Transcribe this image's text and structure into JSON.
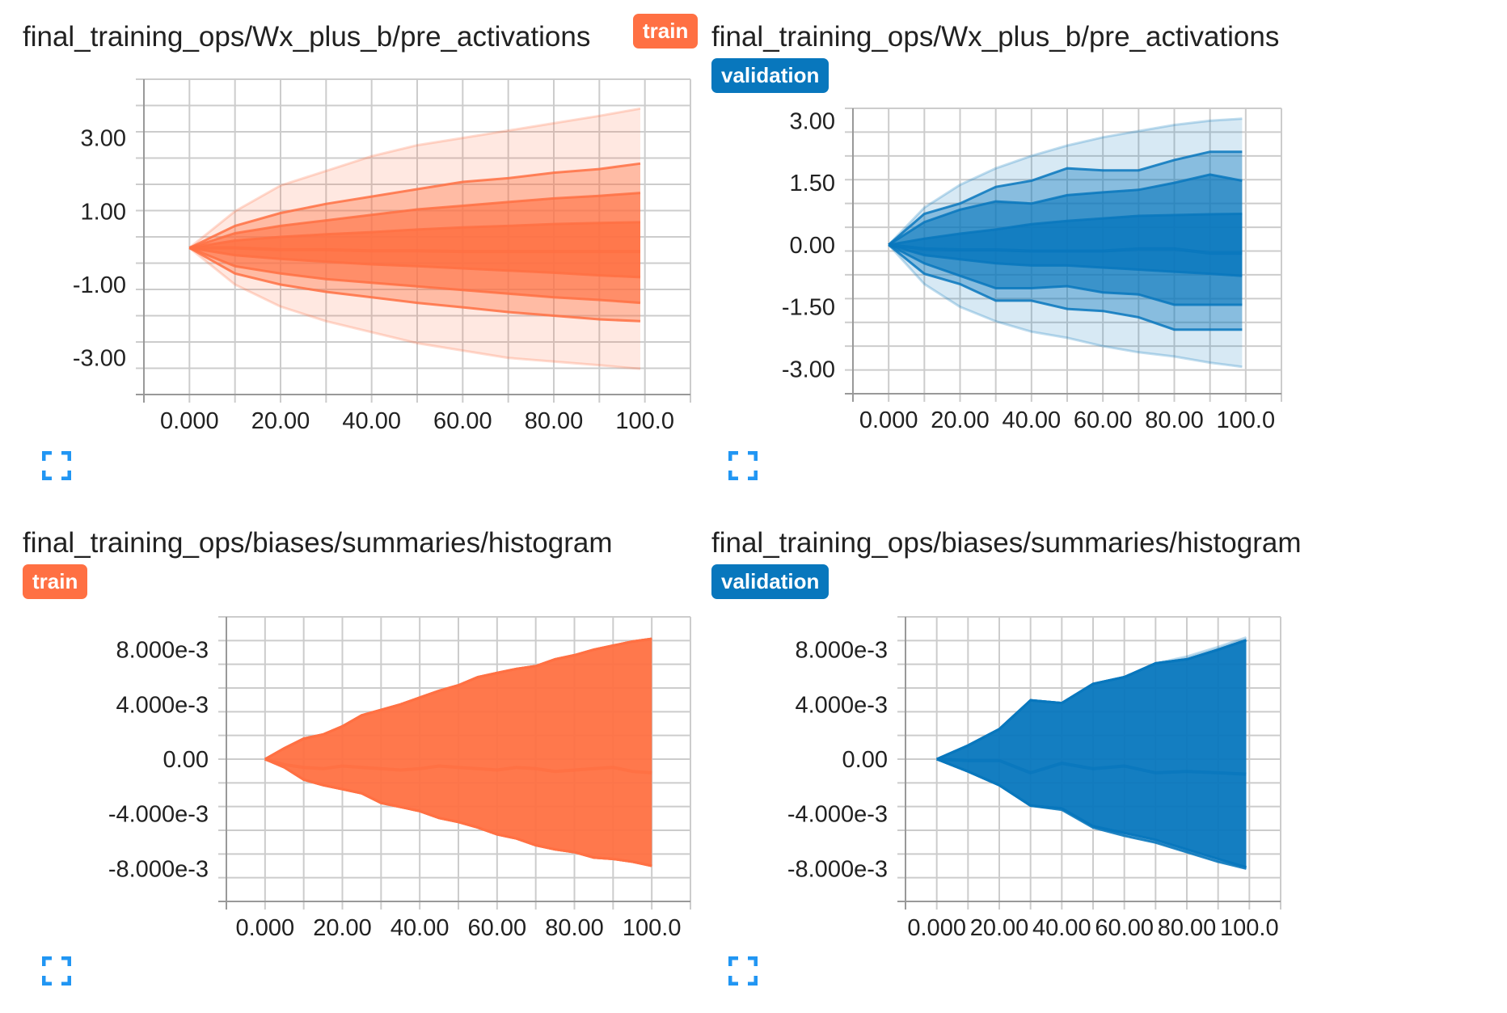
{
  "colors": {
    "train": "#ff7043",
    "validation": "#0877bd"
  },
  "charts": [
    {
      "title": "final_training_ops/Wx_plus_b/pre_activations",
      "tag": "train",
      "expand_icon": "fullscreen-icon",
      "chart_data": {
        "type": "area",
        "subtype": "histogram-distribution",
        "color": "#ff7043",
        "xlim": [
          -10,
          110
        ],
        "ylim": [
          -4.0,
          4.6
        ],
        "xticks": [
          0,
          20,
          40,
          60,
          80,
          100
        ],
        "xtick_labels": [
          "0.000",
          "20.00",
          "40.00",
          "60.00",
          "80.00",
          "100.0"
        ],
        "yticks": [
          3.0,
          1.0,
          -1.0,
          -3.0
        ],
        "ytick_labels": [
          "3.00",
          "1.00",
          "-1.00",
          "-3.00"
        ],
        "grid": true,
        "x": [
          0,
          10,
          20,
          30,
          40,
          50,
          60,
          70,
          80,
          90,
          99
        ],
        "bands": [
          [
            0,
            1.0,
            1.7,
            2.1,
            2.5,
            2.8,
            3.0,
            3.2,
            3.4,
            3.6,
            3.8
          ],
          [
            0,
            0.6,
            0.95,
            1.2,
            1.4,
            1.6,
            1.8,
            1.9,
            2.05,
            2.15,
            2.3
          ],
          [
            0,
            0.4,
            0.6,
            0.75,
            0.9,
            1.05,
            1.15,
            1.25,
            1.35,
            1.42,
            1.5
          ],
          [
            0,
            0.2,
            0.3,
            0.37,
            0.43,
            0.5,
            0.56,
            0.6,
            0.65,
            0.68,
            0.7
          ],
          [
            0,
            0.0,
            -0.05,
            -0.05,
            -0.08,
            -0.08,
            -0.1,
            -0.1,
            -0.1,
            -0.1,
            -0.1
          ],
          [
            0,
            -0.2,
            -0.3,
            -0.38,
            -0.45,
            -0.5,
            -0.56,
            -0.62,
            -0.68,
            -0.75,
            -0.8
          ],
          [
            0,
            -0.5,
            -0.7,
            -0.85,
            -0.95,
            -1.05,
            -1.15,
            -1.25,
            -1.35,
            -1.42,
            -1.5
          ],
          [
            0,
            -0.7,
            -1.0,
            -1.2,
            -1.35,
            -1.5,
            -1.62,
            -1.75,
            -1.85,
            -1.95,
            -2.0
          ],
          [
            0,
            -1.0,
            -1.6,
            -2.0,
            -2.3,
            -2.6,
            -2.8,
            -3.0,
            -3.1,
            -3.2,
            -3.3
          ]
        ]
      }
    },
    {
      "title": "final_training_ops/Wx_plus_b/pre_activations",
      "tag": "validation",
      "expand_icon": "fullscreen-icon",
      "chart_data": {
        "type": "area",
        "subtype": "histogram-distribution",
        "color": "#0877bd",
        "xlim": [
          -10,
          110
        ],
        "ylim": [
          -3.6,
          3.3
        ],
        "xticks": [
          0,
          20,
          40,
          60,
          80,
          100
        ],
        "xtick_labels": [
          "0.000",
          "20.00",
          "40.00",
          "60.00",
          "80.00",
          "100.0"
        ],
        "yticks": [
          3.0,
          1.5,
          0.0,
          -1.5,
          -3.0
        ],
        "ytick_labels": [
          "3.00",
          "1.50",
          "0.00",
          "-1.50",
          "-3.00"
        ],
        "grid": true,
        "x": [
          0,
          10,
          20,
          30,
          40,
          50,
          60,
          70,
          80,
          90,
          99
        ],
        "bands": [
          [
            0,
            0.9,
            1.45,
            1.85,
            2.15,
            2.4,
            2.6,
            2.75,
            2.9,
            3.0,
            3.05
          ],
          [
            0,
            0.75,
            1.0,
            1.4,
            1.55,
            1.85,
            1.8,
            1.8,
            2.05,
            2.25,
            2.25
          ],
          [
            0,
            0.55,
            0.85,
            1.05,
            1.0,
            1.2,
            1.27,
            1.33,
            1.5,
            1.7,
            1.55
          ],
          [
            0,
            0.15,
            0.27,
            0.37,
            0.5,
            0.58,
            0.64,
            0.7,
            0.72,
            0.74,
            0.75
          ],
          [
            0,
            -0.1,
            -0.12,
            -0.12,
            -0.15,
            -0.15,
            -0.15,
            -0.1,
            -0.1,
            -0.2,
            -0.2
          ],
          [
            0,
            -0.25,
            -0.35,
            -0.45,
            -0.5,
            -0.5,
            -0.55,
            -0.6,
            -0.65,
            -0.7,
            -0.75
          ],
          [
            0,
            -0.45,
            -0.75,
            -1.05,
            -1.05,
            -1.0,
            -1.15,
            -1.2,
            -1.45,
            -1.45,
            -1.45
          ],
          [
            0,
            -0.7,
            -0.95,
            -1.35,
            -1.35,
            -1.55,
            -1.6,
            -1.75,
            -2.05,
            -2.05,
            -2.05
          ],
          [
            0,
            -0.95,
            -1.5,
            -1.85,
            -2.1,
            -2.25,
            -2.45,
            -2.6,
            -2.7,
            -2.85,
            -2.95
          ]
        ]
      }
    },
    {
      "title": "final_training_ops/biases/summaries/histogram",
      "tag": "train",
      "expand_icon": "fullscreen-icon",
      "chart_data": {
        "type": "area",
        "subtype": "histogram-distribution",
        "color": "#ff7043",
        "xlim": [
          -10,
          110
        ],
        "ylim": [
          -0.0104,
          0.0104
        ],
        "xticks": [
          0,
          20,
          40,
          60,
          80,
          100
        ],
        "xtick_labels": [
          "0.000",
          "20.00",
          "40.00",
          "60.00",
          "80.00",
          "100.0"
        ],
        "yticks": [
          0.008,
          0.004,
          0.0,
          -0.004,
          -0.008
        ],
        "ytick_labels": [
          "8.000e-3",
          "4.000e-3",
          "0.00",
          "-4.000e-3",
          "-8.000e-3"
        ],
        "grid": true,
        "x": [
          0,
          5,
          10,
          15,
          20,
          25,
          30,
          35,
          40,
          45,
          50,
          55,
          60,
          65,
          70,
          75,
          80,
          85,
          90,
          95,
          100
        ],
        "bands": [
          [
            0,
            0.0008,
            0.0015,
            0.0018,
            0.0024,
            0.0032,
            0.0036,
            0.004,
            0.0045,
            0.005,
            0.0054,
            0.006,
            0.0063,
            0.0066,
            0.0068,
            0.0073,
            0.0076,
            0.008,
            0.0083,
            0.0086,
            0.0088
          ],
          [
            0,
            0.0008,
            0.0015,
            0.0018,
            0.0024,
            0.0032,
            0.0036,
            0.004,
            0.0045,
            0.005,
            0.0054,
            0.006,
            0.0063,
            0.0066,
            0.0068,
            0.0073,
            0.0076,
            0.008,
            0.0083,
            0.0086,
            0.0088
          ],
          [
            0,
            0.0008,
            0.0015,
            0.0018,
            0.0024,
            0.0032,
            0.0036,
            0.004,
            0.0045,
            0.005,
            0.0054,
            0.006,
            0.0063,
            0.0066,
            0.0068,
            0.0073,
            0.0076,
            0.008,
            0.0083,
            0.0086,
            0.0088
          ],
          [
            0,
            0.0008,
            0.0015,
            0.0018,
            0.0024,
            0.0032,
            0.0036,
            0.004,
            0.0045,
            0.005,
            0.0054,
            0.006,
            0.0063,
            0.0066,
            0.0068,
            0.0073,
            0.0076,
            0.008,
            0.0083,
            0.0086,
            0.0088
          ],
          [
            0,
            -0.0004,
            -0.0006,
            -0.0007,
            -0.0005,
            -0.0006,
            -0.0007,
            -0.0008,
            -0.0007,
            -0.0005,
            -0.0006,
            -0.0007,
            -0.0008,
            -0.0006,
            -0.0007,
            -0.0009,
            -0.0008,
            -0.0007,
            -0.0006,
            -0.0009,
            -0.001
          ],
          [
            0,
            -0.0006,
            -0.0015,
            -0.0019,
            -0.0022,
            -0.0025,
            -0.0032,
            -0.0035,
            -0.0038,
            -0.0043,
            -0.0046,
            -0.005,
            -0.0055,
            -0.0058,
            -0.0063,
            -0.0066,
            -0.0068,
            -0.0072,
            -0.0073,
            -0.0075,
            -0.0078
          ],
          [
            0,
            -0.0006,
            -0.0015,
            -0.0019,
            -0.0022,
            -0.0025,
            -0.0032,
            -0.0035,
            -0.0038,
            -0.0043,
            -0.0046,
            -0.005,
            -0.0055,
            -0.0058,
            -0.0063,
            -0.0066,
            -0.0068,
            -0.0072,
            -0.0073,
            -0.0075,
            -0.0078
          ],
          [
            0,
            -0.0006,
            -0.0015,
            -0.0019,
            -0.0022,
            -0.0025,
            -0.0032,
            -0.0035,
            -0.0038,
            -0.0043,
            -0.0046,
            -0.005,
            -0.0055,
            -0.0058,
            -0.0063,
            -0.0066,
            -0.0068,
            -0.0072,
            -0.0073,
            -0.0075,
            -0.0078
          ],
          [
            0,
            -0.0006,
            -0.0015,
            -0.0019,
            -0.0022,
            -0.0025,
            -0.0032,
            -0.0035,
            -0.0038,
            -0.0043,
            -0.0046,
            -0.005,
            -0.0055,
            -0.0058,
            -0.0063,
            -0.0066,
            -0.0068,
            -0.0072,
            -0.0073,
            -0.0075,
            -0.0078
          ]
        ]
      }
    },
    {
      "title": "final_training_ops/biases/summaries/histogram",
      "tag": "validation",
      "expand_icon": "fullscreen-icon",
      "chart_data": {
        "type": "area",
        "subtype": "histogram-distribution",
        "color": "#0877bd",
        "xlim": [
          -10,
          110
        ],
        "ylim": [
          -0.0104,
          0.0104
        ],
        "xticks": [
          0,
          20,
          40,
          60,
          80,
          100
        ],
        "xtick_labels": [
          "0.000",
          "20.00",
          "40.00",
          "60.00",
          "80.00",
          "100.0"
        ],
        "yticks": [
          0.008,
          0.004,
          0.0,
          -0.004,
          -0.008
        ],
        "ytick_labels": [
          "8.000e-3",
          "4.000e-3",
          "0.00",
          "-4.000e-3",
          "-8.000e-3"
        ],
        "grid": true,
        "x": [
          0,
          10,
          20,
          30,
          40,
          50,
          60,
          70,
          80,
          90,
          99
        ],
        "bands": [
          [
            0,
            0.001,
            0.0022,
            0.0043,
            0.0041,
            0.0055,
            0.006,
            0.007,
            0.0075,
            0.0082,
            0.0089
          ],
          [
            0,
            0.001,
            0.0022,
            0.0043,
            0.0041,
            0.0055,
            0.006,
            0.007,
            0.0073,
            0.008,
            0.0087
          ],
          [
            0,
            0.001,
            0.0022,
            0.0043,
            0.0041,
            0.0055,
            0.006,
            0.007,
            0.0073,
            0.008,
            0.0087
          ],
          [
            0,
            0.001,
            0.0022,
            0.0043,
            0.0041,
            0.0055,
            0.006,
            0.007,
            0.0073,
            0.008,
            0.0087
          ],
          [
            0,
            -0.0001,
            -0.0001,
            -0.001,
            -0.0003,
            -0.0007,
            -0.0005,
            -0.001,
            -0.0009,
            -0.001,
            -0.0011
          ],
          [
            0,
            -0.0009,
            -0.0019,
            -0.0034,
            -0.0036,
            -0.0049,
            -0.0054,
            -0.0059,
            -0.0066,
            -0.0073,
            -0.0079
          ],
          [
            0,
            -0.0009,
            -0.0019,
            -0.0034,
            -0.0036,
            -0.0049,
            -0.0054,
            -0.0059,
            -0.0066,
            -0.0073,
            -0.0079
          ],
          [
            0,
            -0.0009,
            -0.0019,
            -0.0034,
            -0.0037,
            -0.005,
            -0.0056,
            -0.0061,
            -0.0068,
            -0.0075,
            -0.008
          ],
          [
            0,
            -0.0009,
            -0.0019,
            -0.0034,
            -0.0037,
            -0.005,
            -0.0056,
            -0.0061,
            -0.0068,
            -0.0075,
            -0.008
          ]
        ]
      }
    }
  ]
}
